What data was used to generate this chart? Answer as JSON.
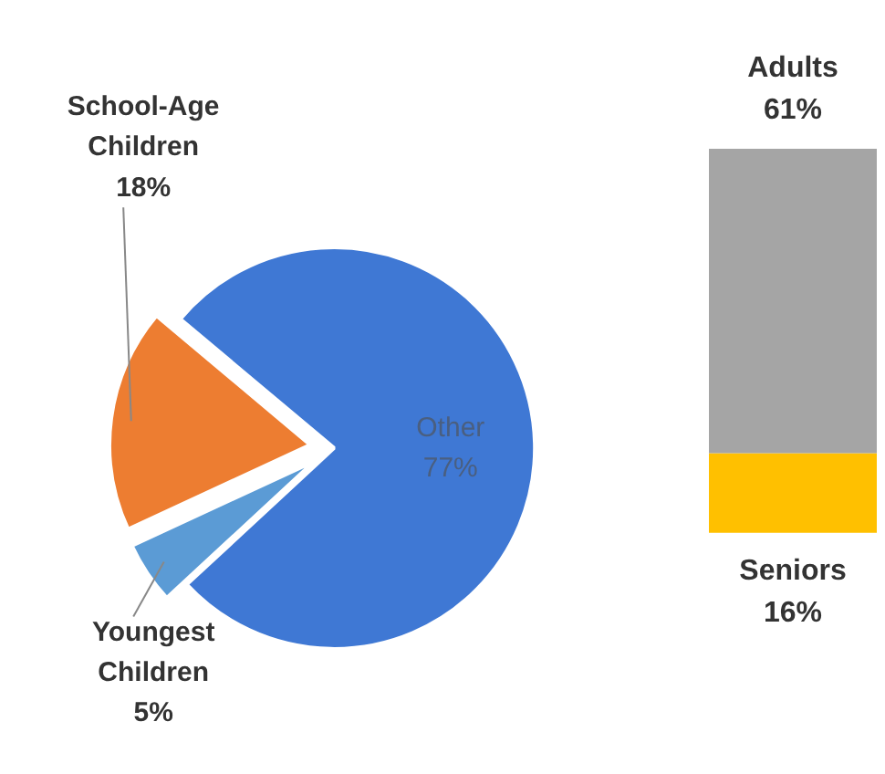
{
  "chart_data": [
    {
      "type": "pie",
      "categories": [
        "School-Age Children",
        "Youngest Children",
        "Other"
      ],
      "values": [
        18,
        5,
        77
      ],
      "colors": [
        "#ed7d31",
        "#5b9bd5",
        "#3f78d4"
      ],
      "value_labels": [
        "18%",
        "5%",
        "77%"
      ]
    },
    {
      "type": "bar",
      "stacked": true,
      "categories": [
        null
      ],
      "series": [
        {
          "name": "Seniors",
          "color": "#ffc000",
          "values": [
            16
          ],
          "value_labels": [
            "16%"
          ]
        },
        {
          "name": "Adults",
          "color": "#a5a5a5",
          "values": [
            61
          ],
          "value_labels": [
            "61%"
          ]
        }
      ]
    }
  ]
}
